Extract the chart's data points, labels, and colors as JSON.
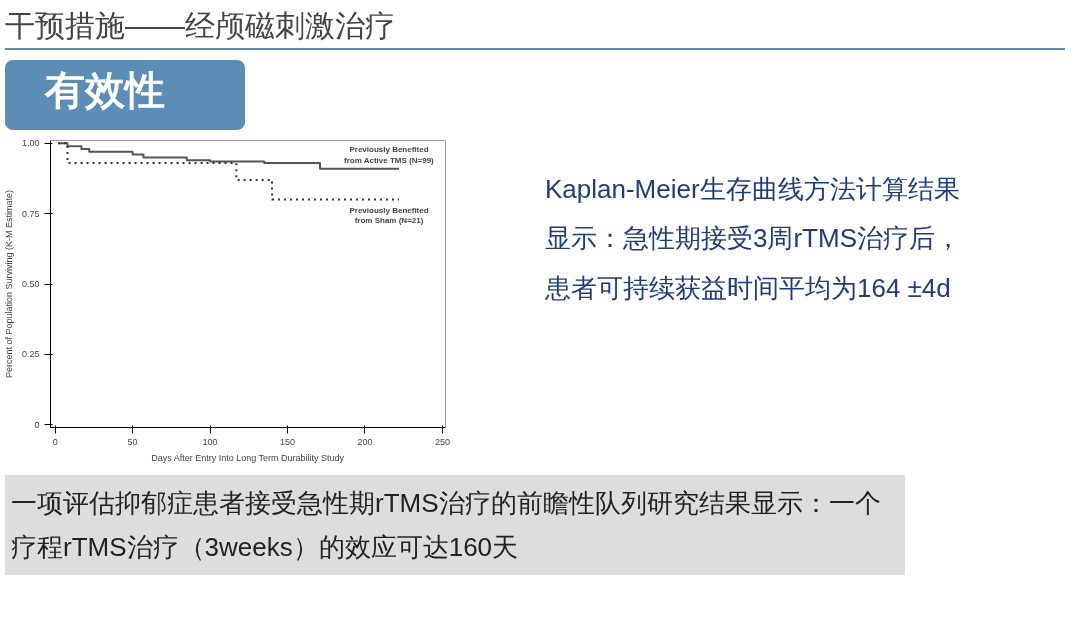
{
  "chart_data": {
    "type": "step",
    "title": "干预措施——经颅磁刺激治疗",
    "subtitle": "有效性",
    "xlabel": "Days After Entry Into Long Term Durability Study",
    "ylabel": "Percent of Population Surviving (K-M Estimate)",
    "xlim": [
      -3,
      252
    ],
    "ylim": [
      -0.01,
      1.01
    ],
    "xticks": [
      0,
      50,
      100,
      150,
      200,
      250
    ],
    "yticks": [
      {
        "value": 0,
        "label": "0"
      },
      {
        "value": 0.25,
        "label": "0.25"
      },
      {
        "value": 0.5,
        "label": "0.50"
      },
      {
        "value": 0.75,
        "label": "0.75"
      },
      {
        "value": 1,
        "label": "1.00"
      }
    ],
    "grid": false,
    "marker": "none",
    "series": [
      {
        "name": "Previously Benefited\nfrom Active TMS (N=99)",
        "color": "#555555",
        "line_style": "solid",
        "x": [
          2,
          8,
          17,
          22,
          50,
          57,
          85,
          100,
          135,
          171,
          222
        ],
        "values": [
          1.0,
          0.99,
          0.98,
          0.97,
          0.96,
          0.95,
          0.94,
          0.935,
          0.93,
          0.91,
          0.91
        ]
      },
      {
        "name": "Previously Benefited\nfrom Sham (N=21)",
        "color": "#333333",
        "line_style": "dotted",
        "x": [
          2,
          8,
          117,
          140,
          222
        ],
        "values": [
          1.0,
          0.93,
          0.87,
          0.8,
          0.8
        ]
      }
    ],
    "annotations": [
      "Kaplan-Meier生存曲线方法计算结果显示：急性期接受3周rTMS治疗后，患者可持续获益时间平均为164 ±4d",
      "一项评估抑郁症患者接受急性期rTMS治疗的前瞻性队列研究结果显示：一个疗程rTMS治疗（3weeks）的效应可达160天"
    ]
  }
}
